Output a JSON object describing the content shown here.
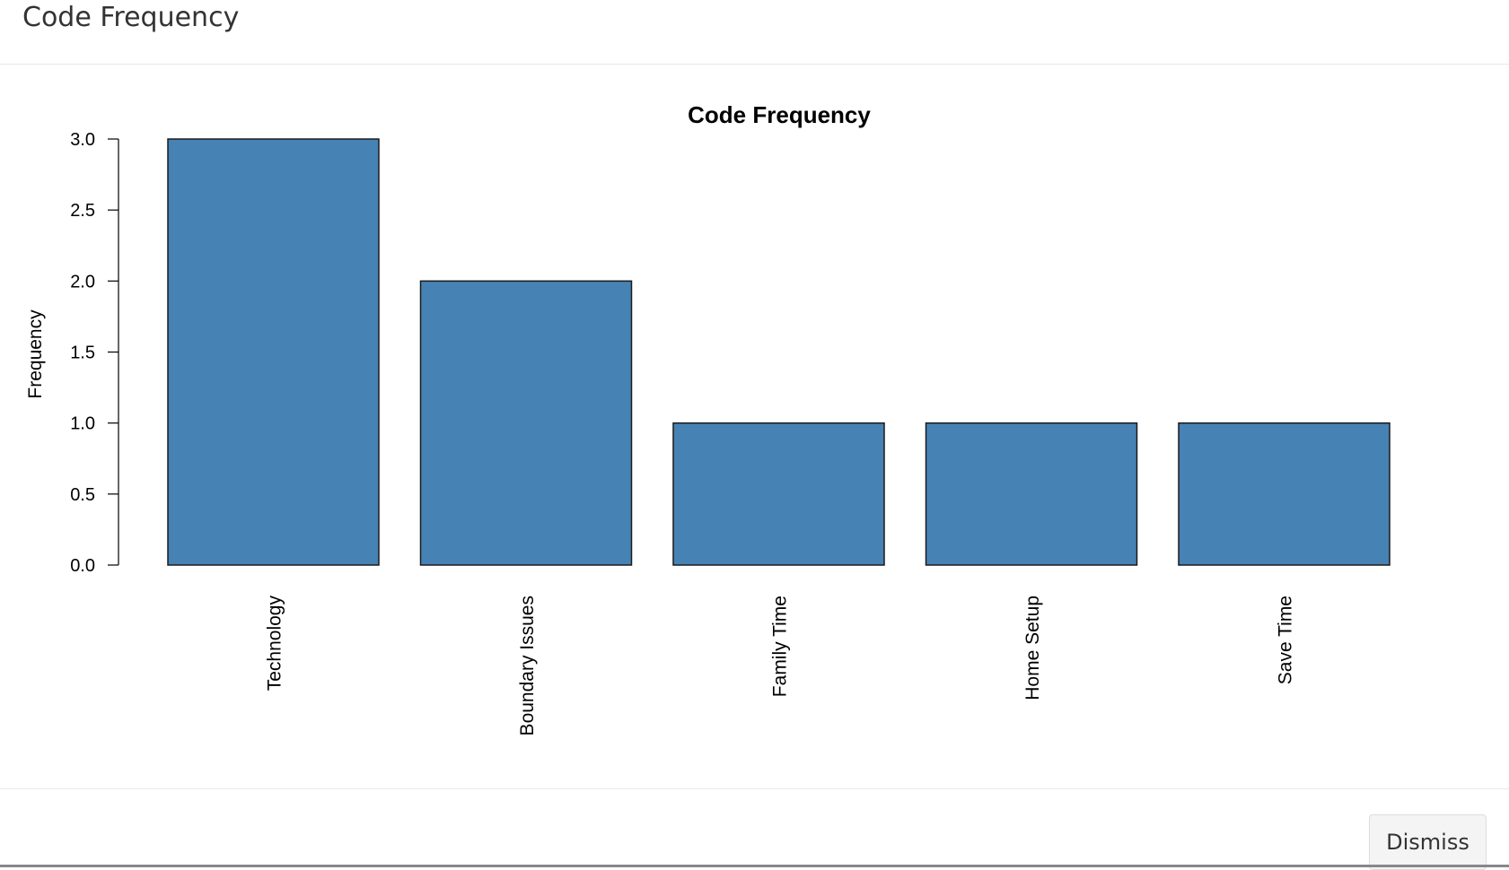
{
  "modal": {
    "title": "Code Frequency",
    "dismiss_label": "Dismiss"
  },
  "colors": {
    "bar_fill": "#4682b4",
    "bar_stroke": "#1a1a1a"
  },
  "chart_data": {
    "type": "bar",
    "title": "Code Frequency",
    "xlabel": "",
    "ylabel": "Frequency",
    "categories": [
      "Technology",
      "Boundary Issues",
      "Family Time",
      "Home Setup",
      "Save Time"
    ],
    "values": [
      3,
      2,
      1,
      1,
      1
    ],
    "ylim": [
      0,
      3
    ],
    "yticks": [
      "0.0",
      "0.5",
      "1.0",
      "1.5",
      "2.0",
      "2.5",
      "3.0"
    ],
    "grid": false,
    "legend": "none"
  }
}
